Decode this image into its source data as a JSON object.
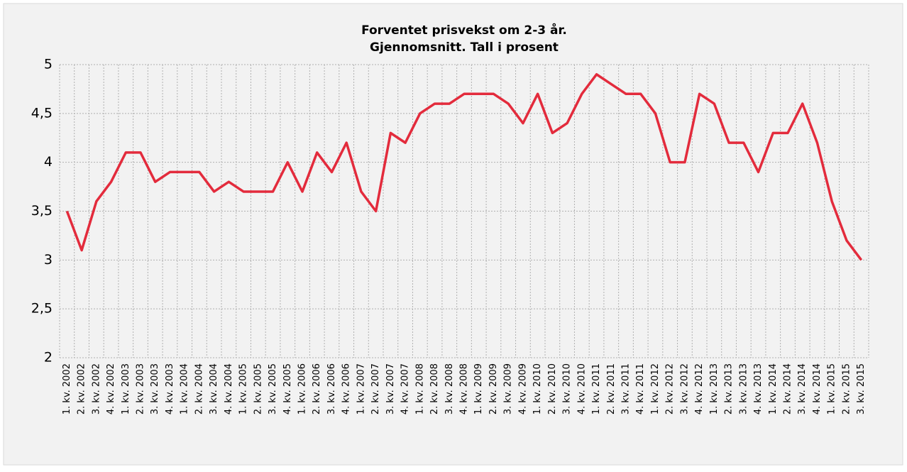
{
  "chart_data": {
    "type": "line",
    "title": "Forventet prisvekst om 2-3 år.",
    "subtitle": "Gjennomsnitt. Tall i prosent",
    "categories": [
      "1. kv. 2002",
      "2. kv. 2002",
      "3. kv. 2002",
      "4. kv. 2002",
      "1. kv. 2003",
      "2. kv. 2003",
      "3. kv. 2003",
      "4. kv. 2003",
      "1. kv. 2004",
      "2. kv. 2004",
      "3. kv. 2004",
      "4. kv. 2004",
      "1. kv. 2005",
      "2. kv. 2005",
      "3. kv. 2005",
      "4. kv. 2005",
      "1. kv. 2006",
      "2. kv. 2006",
      "3. kv. 2006",
      "4. kv. 2006",
      "1. kv. 2007",
      "2. kv. 2007",
      "3. kv. 2007",
      "4. kv. 2007",
      "1. kv. 2008",
      "2. kv. 2008",
      "3. kv. 2008",
      "4. kv. 2008",
      "1. kv. 2009",
      "2. kv. 2009",
      "3. kv. 2009",
      "4. kv. 2009",
      "1. kv. 2010",
      "2. kv. 2010",
      "3. kv. 2010",
      "4. kv. 2010",
      "1. kv. 2011",
      "2. kv. 2011",
      "3. kv. 2011",
      "4. kv. 2011",
      "1. kv. 2012",
      "2. kv. 2012",
      "3. kv. 2012",
      "4. kv. 2012",
      "1. kv. 2013",
      "2. kv. 2013",
      "3. kv. 2013",
      "4. kv. 2013",
      "1. kv. 2014",
      "2. kv. 2014",
      "3. kv. 2014",
      "4. kv. 2014",
      "1. kv. 2015",
      "2. kv. 2015",
      "3. kv. 2015"
    ],
    "values": [
      3.5,
      3.1,
      3.6,
      3.8,
      4.1,
      4.1,
      3.8,
      3.9,
      3.9,
      3.9,
      3.7,
      3.8,
      3.7,
      3.7,
      3.7,
      4.0,
      3.7,
      4.1,
      3.9,
      4.2,
      3.7,
      3.5,
      4.3,
      4.2,
      4.5,
      4.6,
      4.6,
      4.7,
      4.7,
      4.7,
      4.6,
      4.4,
      4.7,
      4.3,
      4.4,
      4.7,
      4.9,
      4.8,
      4.7,
      4.7,
      4.5,
      4.0,
      4.0,
      4.7,
      4.6,
      4.2,
      4.2,
      3.9,
      4.3,
      4.3,
      4.6,
      4.2,
      3.6,
      3.2,
      3.0
    ],
    "color": "#e32b3c",
    "ylim": [
      2,
      5
    ],
    "yticks": [
      2,
      {
        "value": 2.5,
        "label": "2,5"
      },
      3,
      {
        "value": 3.5,
        "label": "3,5"
      },
      4,
      {
        "value": 4.5,
        "label": "4,5"
      },
      5
    ],
    "grid": true
  }
}
